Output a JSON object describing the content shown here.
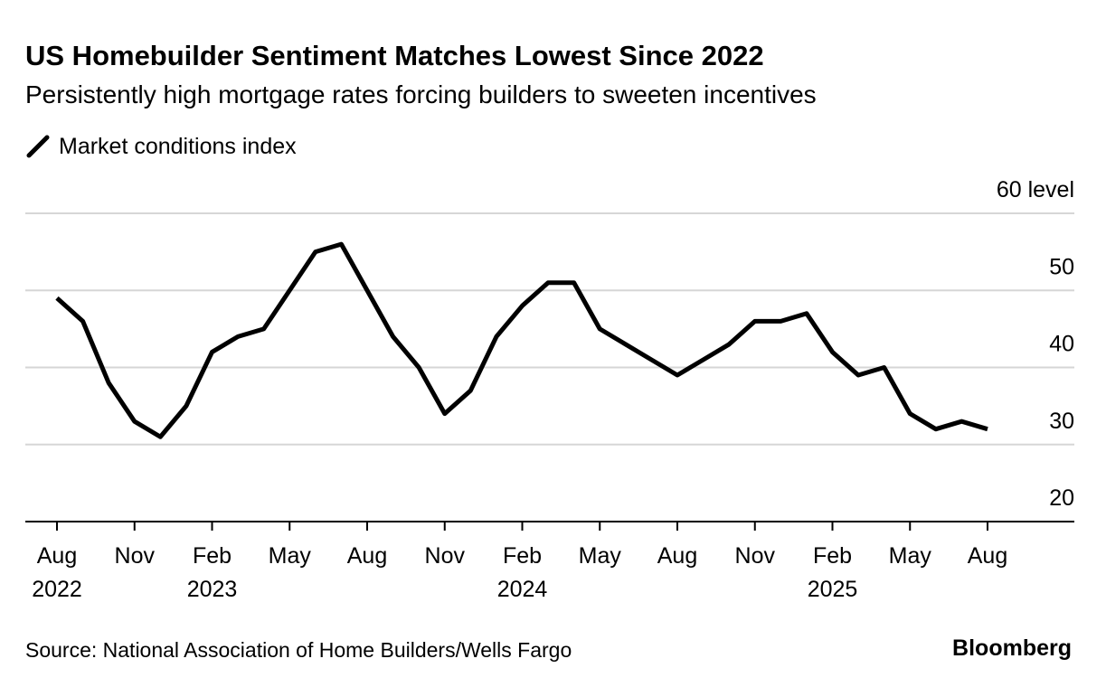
{
  "chart_data": {
    "type": "line",
    "title": "US Homebuilder Sentiment Matches Lowest Since 2022",
    "subtitle": "Persistently high mortgage rates forcing builders to sweeten incentives",
    "categories": [
      "Aug 2022",
      null,
      null,
      "Nov",
      null,
      null,
      "Feb 2023",
      null,
      null,
      "May",
      null,
      null,
      "Aug",
      null,
      null,
      "Nov",
      null,
      null,
      "Feb 2024",
      null,
      null,
      "May",
      null,
      null,
      "Aug",
      null,
      null,
      "Nov",
      null,
      null,
      "Feb 2025",
      null,
      null,
      "May",
      null,
      null,
      "Aug"
    ],
    "series": [
      {
        "name": "Market conditions index",
        "color": "#000000",
        "values": [
          49,
          46,
          38,
          33,
          31,
          35,
          42,
          44,
          45,
          50,
          55,
          56,
          50,
          44,
          40,
          34,
          37,
          44,
          48,
          51,
          51,
          45,
          43,
          41,
          39,
          41,
          43,
          46,
          46,
          47,
          42,
          39,
          40,
          34,
          32,
          33,
          32
        ]
      }
    ],
    "ylim": [
      20,
      60
    ],
    "yticks": [
      20,
      30,
      40,
      50,
      {
        "value": 60,
        "label": "60 level"
      }
    ],
    "grid": true,
    "source": "Source: National Association of Home Builders/Wells Fargo",
    "brand": "Bloomberg"
  }
}
